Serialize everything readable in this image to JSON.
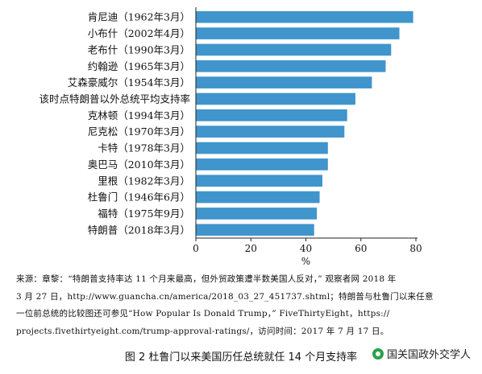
{
  "chart_data": {
    "type": "bar",
    "orientation": "horizontal",
    "categories": [
      "肯尼迪（1962年3月）",
      "小布什（2002年4月）",
      "老布什（1990年3月）",
      "约翰逊（1965年3月）",
      "艾森豪威尔（1954年3月）",
      "该时点特朗普以外总统平均支持率",
      "克林顿（1994年3月）",
      "尼克松（1970年3月）",
      "卡特（1978年3月）",
      "奥巴马（2010年3月）",
      "里根（1982年3月）",
      "杜鲁门（1946年6月）",
      "福特（1975年9月）",
      "特朗普（2018年3月）"
    ],
    "values": [
      79,
      74,
      71,
      69,
      64,
      58,
      55,
      54,
      48,
      48,
      46,
      45,
      44,
      43
    ],
    "xlim": [
      0,
      80
    ],
    "xticks": [
      0,
      20,
      40,
      60,
      80
    ],
    "xlabel": "%",
    "bar_color": "#3f95cc",
    "grid": false
  },
  "source_lines": [
    "来源：章黎：“特朗普支持率达 11 个月来最高，但外贸政策遭半数美国人反对，” 观察者网 2018 年",
    "3 月 27 日，http://www.guancha.cn/america/2018_03_27_451737.shtml；特朗普与杜鲁门以来任意",
    "一位前总统的比较图还可参见“How Popular Is Donald Trump，” FiveThirtyEight，https://",
    "projects.fivethirtyeight.com/trump-approval-ratings/，访问时间：2017 年 7 月 17 日。"
  ],
  "caption": "图 2    杜鲁门以来美国历任总统就任 14 个月支持率",
  "watermark": "国关国政外交学人"
}
